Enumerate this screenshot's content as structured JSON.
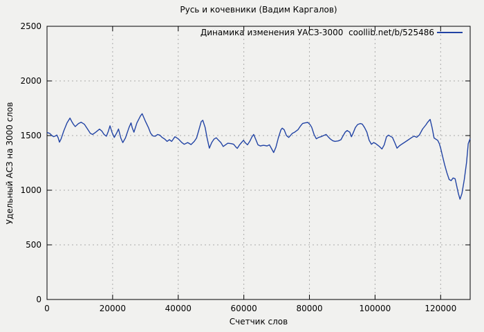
{
  "title": "Русь и кочевники (Вадим Каргалов)",
  "legend": {
    "label": "Динамика изменения УАСЗ-3000  coollib.net/b/525486"
  },
  "colors": {
    "background": "#f1f1ef",
    "line": "#2143a4",
    "grid": "#a9a9a9",
    "axis": "#000000"
  },
  "chart_data": {
    "type": "line",
    "title": "Русь и кочевники (Вадим Каргалов)",
    "xlabel": "Счетчик слов",
    "ylabel": "Удельный АСЗ на 3000 слов",
    "xlim": [
      0,
      129000
    ],
    "ylim": [
      0,
      2500
    ],
    "x_ticks": [
      0,
      20000,
      40000,
      60000,
      80000,
      100000,
      120000
    ],
    "x_tick_labels": [
      "0",
      "20000",
      "40000",
      "60000",
      "80000",
      "100000",
      "120000"
    ],
    "y_ticks": [
      0,
      500,
      1000,
      1500,
      2000,
      2500
    ],
    "y_tick_labels": [
      "0",
      "500",
      "1000",
      "1500",
      "2000",
      "2500"
    ],
    "grid": "dashed",
    "legend_position": "top-right-inside",
    "series": [
      {
        "name": "Динамика изменения УАСЗ-3000  coollib.net/b/525486",
        "color": "#2143a4",
        "points": [
          [
            0,
            1528
          ],
          [
            800,
            1520
          ],
          [
            1500,
            1500
          ],
          [
            2000,
            1490
          ],
          [
            2600,
            1497
          ],
          [
            3000,
            1505
          ],
          [
            3400,
            1480
          ],
          [
            3800,
            1440
          ],
          [
            4300,
            1470
          ],
          [
            5100,
            1542
          ],
          [
            6100,
            1616
          ],
          [
            7000,
            1660
          ],
          [
            7600,
            1625
          ],
          [
            8000,
            1605
          ],
          [
            8600,
            1582
          ],
          [
            9600,
            1610
          ],
          [
            10400,
            1622
          ],
          [
            11400,
            1603
          ],
          [
            12500,
            1553
          ],
          [
            13200,
            1521
          ],
          [
            13900,
            1510
          ],
          [
            14900,
            1532
          ],
          [
            16000,
            1559
          ],
          [
            16700,
            1542
          ],
          [
            17400,
            1510
          ],
          [
            18100,
            1494
          ],
          [
            18700,
            1540
          ],
          [
            19200,
            1589
          ],
          [
            19800,
            1531
          ],
          [
            20500,
            1483
          ],
          [
            21300,
            1528
          ],
          [
            21800,
            1560
          ],
          [
            22500,
            1478
          ],
          [
            23100,
            1436
          ],
          [
            23900,
            1478
          ],
          [
            25000,
            1574
          ],
          [
            25600,
            1616
          ],
          [
            26000,
            1570
          ],
          [
            26500,
            1531
          ],
          [
            27400,
            1616
          ],
          [
            28500,
            1680
          ],
          [
            29000,
            1700
          ],
          [
            29900,
            1637
          ],
          [
            30900,
            1574
          ],
          [
            31600,
            1521
          ],
          [
            32300,
            1496
          ],
          [
            33000,
            1494
          ],
          [
            33700,
            1510
          ],
          [
            34400,
            1504
          ],
          [
            35100,
            1483
          ],
          [
            35900,
            1468
          ],
          [
            36600,
            1447
          ],
          [
            37300,
            1462
          ],
          [
            38000,
            1447
          ],
          [
            39000,
            1489
          ],
          [
            40000,
            1470
          ],
          [
            41100,
            1436
          ],
          [
            41800,
            1420
          ],
          [
            42900,
            1436
          ],
          [
            43900,
            1418
          ],
          [
            44900,
            1447
          ],
          [
            45600,
            1478
          ],
          [
            46300,
            1553
          ],
          [
            47000,
            1627
          ],
          [
            47500,
            1640
          ],
          [
            48200,
            1574
          ],
          [
            48800,
            1478
          ],
          [
            49500,
            1385
          ],
          [
            50200,
            1436
          ],
          [
            50900,
            1468
          ],
          [
            51600,
            1480
          ],
          [
            52300,
            1457
          ],
          [
            53000,
            1436
          ],
          [
            53700,
            1400
          ],
          [
            54400,
            1415
          ],
          [
            55100,
            1430
          ],
          [
            56200,
            1426
          ],
          [
            56900,
            1420
          ],
          [
            57600,
            1394
          ],
          [
            58000,
            1383
          ],
          [
            58700,
            1415
          ],
          [
            59400,
            1440
          ],
          [
            59900,
            1457
          ],
          [
            60400,
            1436
          ],
          [
            61100,
            1415
          ],
          [
            61800,
            1447
          ],
          [
            62500,
            1489
          ],
          [
            63000,
            1510
          ],
          [
            63600,
            1468
          ],
          [
            64300,
            1415
          ],
          [
            65000,
            1405
          ],
          [
            66000,
            1411
          ],
          [
            67100,
            1405
          ],
          [
            67800,
            1415
          ],
          [
            68400,
            1383
          ],
          [
            69100,
            1345
          ],
          [
            69800,
            1394
          ],
          [
            70500,
            1478
          ],
          [
            71300,
            1553
          ],
          [
            71700,
            1568
          ],
          [
            72300,
            1553
          ],
          [
            73000,
            1500
          ],
          [
            73700,
            1483
          ],
          [
            74800,
            1521
          ],
          [
            75500,
            1531
          ],
          [
            76500,
            1553
          ],
          [
            77200,
            1585
          ],
          [
            77900,
            1610
          ],
          [
            78600,
            1616
          ],
          [
            79500,
            1620
          ],
          [
            80200,
            1600
          ],
          [
            80700,
            1574
          ],
          [
            81400,
            1510
          ],
          [
            82100,
            1470
          ],
          [
            82800,
            1483
          ],
          [
            83500,
            1489
          ],
          [
            84600,
            1504
          ],
          [
            85100,
            1510
          ],
          [
            85700,
            1489
          ],
          [
            86400,
            1468
          ],
          [
            87100,
            1453
          ],
          [
            87800,
            1447
          ],
          [
            88800,
            1451
          ],
          [
            89600,
            1462
          ],
          [
            90100,
            1490
          ],
          [
            90900,
            1531
          ],
          [
            91500,
            1546
          ],
          [
            92300,
            1531
          ],
          [
            92800,
            1489
          ],
          [
            93300,
            1521
          ],
          [
            94000,
            1574
          ],
          [
            94700,
            1601
          ],
          [
            95500,
            1610
          ],
          [
            96100,
            1605
          ],
          [
            96800,
            1574
          ],
          [
            97500,
            1531
          ],
          [
            98200,
            1457
          ],
          [
            98900,
            1420
          ],
          [
            99600,
            1436
          ],
          [
            100300,
            1425
          ],
          [
            100700,
            1415
          ],
          [
            101400,
            1398
          ],
          [
            102100,
            1377
          ],
          [
            102800,
            1415
          ],
          [
            103500,
            1489
          ],
          [
            104100,
            1504
          ],
          [
            104600,
            1495
          ],
          [
            105300,
            1483
          ],
          [
            106000,
            1436
          ],
          [
            106700,
            1385
          ],
          [
            107400,
            1405
          ],
          [
            108100,
            1420
          ],
          [
            109100,
            1440
          ],
          [
            110200,
            1462
          ],
          [
            111200,
            1483
          ],
          [
            111900,
            1495
          ],
          [
            112700,
            1484
          ],
          [
            113500,
            1505
          ],
          [
            114500,
            1560
          ],
          [
            115500,
            1598
          ],
          [
            116000,
            1620
          ],
          [
            116800,
            1648
          ],
          [
            117400,
            1570
          ],
          [
            118000,
            1478
          ],
          [
            118500,
            1468
          ],
          [
            119100,
            1457
          ],
          [
            119600,
            1426
          ],
          [
            120000,
            1385
          ],
          [
            120500,
            1320
          ],
          [
            121200,
            1235
          ],
          [
            121900,
            1160
          ],
          [
            122600,
            1098
          ],
          [
            123200,
            1088
          ],
          [
            123800,
            1112
          ],
          [
            124400,
            1105
          ],
          [
            124700,
            1066
          ],
          [
            125400,
            970
          ],
          [
            125900,
            918
          ],
          [
            126500,
            970
          ],
          [
            127200,
            1098
          ],
          [
            127900,
            1256
          ],
          [
            128400,
            1426
          ],
          [
            129000,
            1472
          ]
        ]
      }
    ]
  }
}
